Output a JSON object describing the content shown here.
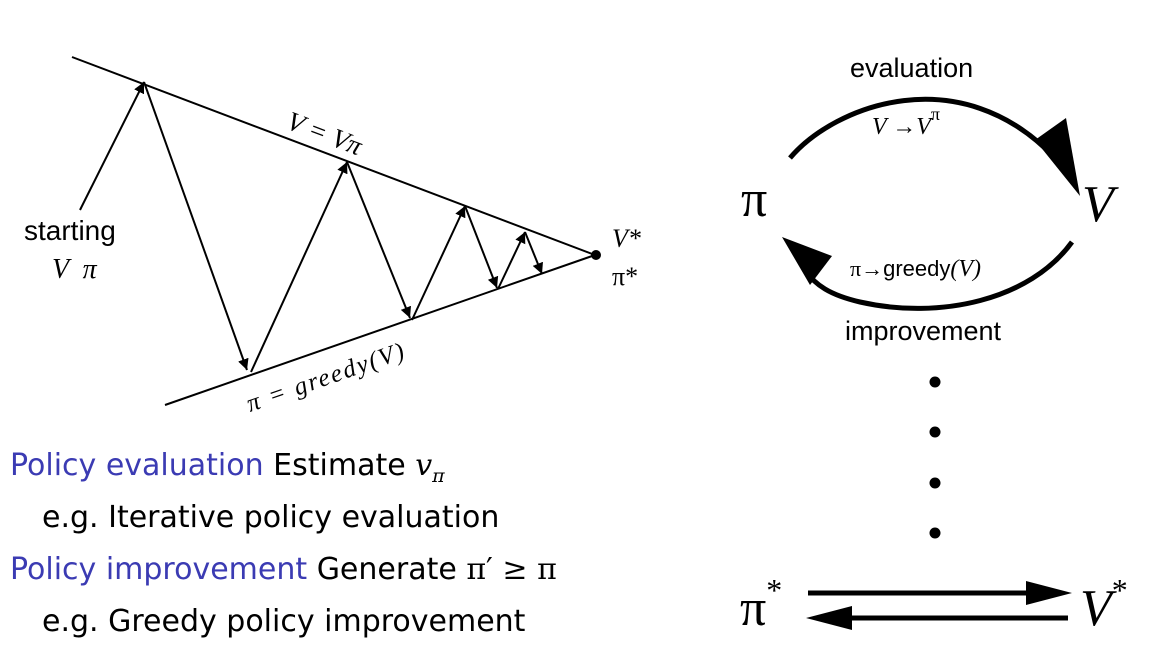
{
  "left_diagram": {
    "top_line_label": "V = Vπ",
    "bottom_line_label": "π = greedy(V)",
    "start_label_line1": "starting",
    "start_label_line2": "V  π",
    "end_label_v": "V*",
    "end_label_pi": "π*"
  },
  "right_diagram": {
    "evaluation_label": "evaluation",
    "evaluation_formula": "V →V",
    "evaluation_formula_sup": "π",
    "pi_node": "π",
    "v_node": "V",
    "improvement_formula_pi": "π→",
    "improvement_formula_greedy": "greedy",
    "improvement_formula_arg": "(V)",
    "improvement_label": "improvement",
    "pi_star": "π",
    "v_star": "V",
    "star": "*"
  },
  "bullets": {
    "eval_term": "Policy evaluation",
    "eval_desc": "Estimate ",
    "eval_math": "v",
    "eval_math_sub": "π",
    "eval_example": "e.g. Iterative policy evaluation",
    "improve_term": "Policy improvement",
    "improve_desc": "Generate ",
    "improve_math": "π′ ≥ π",
    "improve_example": "e.g. Greedy policy improvement"
  }
}
